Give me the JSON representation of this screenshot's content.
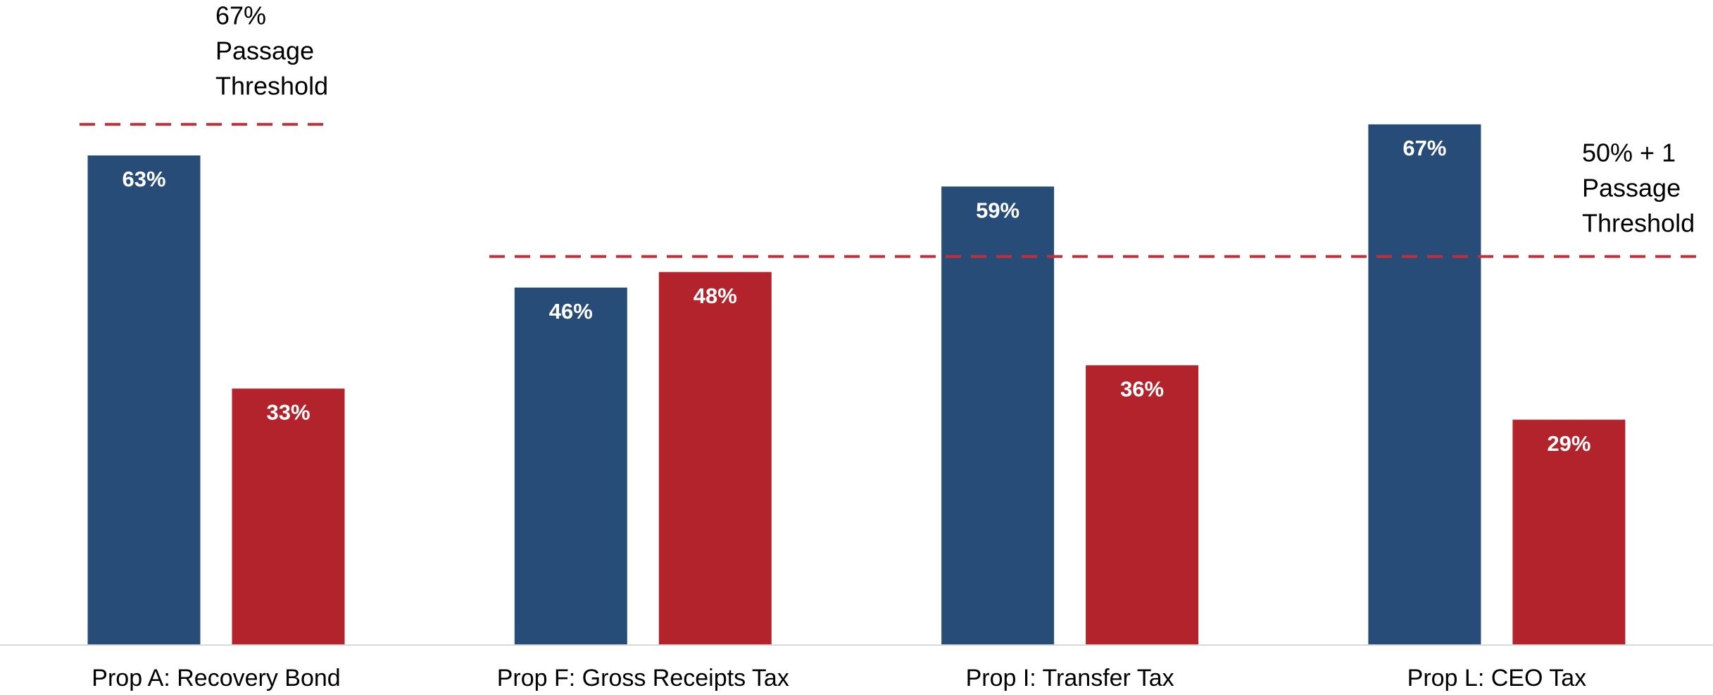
{
  "chart_data": {
    "type": "bar",
    "categories": [
      "Prop A: Recovery Bond",
      "Prop F: Gross Receipts Tax",
      "Prop I: Transfer Tax",
      "Prop L: CEO Tax"
    ],
    "series": [
      {
        "color": "#284c78",
        "values": [
          63,
          46,
          59,
          67
        ],
        "value_labels": [
          "63%",
          "46%",
          "59%",
          "67%"
        ]
      },
      {
        "color": "#b3232b",
        "values": [
          33,
          48,
          36,
          29
        ],
        "value_labels": [
          "33%",
          "48%",
          "36%",
          "29%"
        ]
      }
    ],
    "ylim": [
      0,
      83
    ],
    "annotations": [
      {
        "lines": [
          "67%",
          "Passage",
          "Threshold"
        ],
        "value": 67,
        "color": "#c0303a"
      },
      {
        "lines": [
          "50% + 1",
          "Passage",
          "Threshold"
        ],
        "value": 50,
        "color": "#c0303a"
      }
    ]
  }
}
